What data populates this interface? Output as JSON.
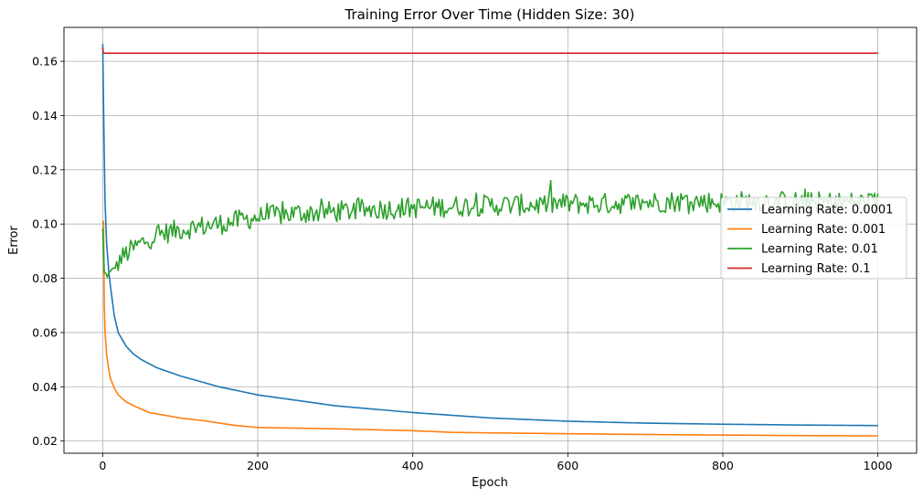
{
  "chart_data": {
    "type": "line",
    "title": "Training Error Over Time (Hidden Size: 30)",
    "xlabel": "Epoch",
    "ylabel": "Error",
    "xlim": [
      -50,
      1050
    ],
    "ylim": [
      0.0155,
      0.1725
    ],
    "xticks": [
      0,
      200,
      400,
      600,
      800,
      1000
    ],
    "yticks": [
      0.02,
      0.04,
      0.06,
      0.08,
      0.1,
      0.12,
      0.14,
      0.16
    ],
    "ytick_labels": [
      "0.02",
      "0.04",
      "0.06",
      "0.08",
      "0.10",
      "0.12",
      "0.14",
      "0.16"
    ],
    "grid": true,
    "legend_placement": "center-right",
    "series": [
      {
        "name": "Learning Rate: 0.0001",
        "color": "#1f77b4",
        "x": [
          0,
          1,
          2,
          3,
          5,
          8,
          10,
          15,
          20,
          30,
          40,
          50,
          70,
          100,
          150,
          200,
          300,
          400,
          500,
          600,
          700,
          800,
          900,
          1000
        ],
        "y": [
          0.1665,
          0.145,
          0.125,
          0.108,
          0.093,
          0.082,
          0.077,
          0.066,
          0.06,
          0.055,
          0.052,
          0.05,
          0.047,
          0.044,
          0.04,
          0.037,
          0.033,
          0.0305,
          0.0285,
          0.0273,
          0.0266,
          0.0262,
          0.0259,
          0.0257
        ]
      },
      {
        "name": "Learning Rate: 0.001",
        "color": "#ff7f0e",
        "x": [
          0,
          1,
          2,
          3,
          5,
          8,
          10,
          15,
          20,
          30,
          40,
          60,
          100,
          130,
          170,
          200,
          300,
          400,
          450,
          500,
          600,
          700,
          800,
          900,
          1000
        ],
        "y": [
          0.1,
          0.101,
          0.07,
          0.06,
          0.052,
          0.046,
          0.043,
          0.0395,
          0.037,
          0.0345,
          0.033,
          0.0305,
          0.0285,
          0.0275,
          0.0258,
          0.025,
          0.0245,
          0.0238,
          0.0232,
          0.023,
          0.0227,
          0.0224,
          0.0222,
          0.022,
          0.0219
        ]
      },
      {
        "name": "Learning Rate: 0.01",
        "color": "#2ca02c",
        "x": [
          0,
          2,
          5,
          10,
          20,
          30,
          50,
          70,
          100,
          150,
          200,
          250,
          300,
          350,
          400,
          450,
          500,
          550,
          600,
          650,
          700,
          750,
          800,
          850,
          900,
          950,
          1000
        ],
        "y": [
          0.098,
          0.082,
          0.081,
          0.082,
          0.086,
          0.089,
          0.093,
          0.096,
          0.098,
          0.1,
          0.1025,
          0.104,
          0.1045,
          0.1055,
          0.106,
          0.1065,
          0.107,
          0.107,
          0.1075,
          0.1075,
          0.108,
          0.1085,
          0.108,
          0.1085,
          0.108,
          0.108,
          0.108
        ],
        "noise_amplitude": 0.004
      },
      {
        "name": "Learning Rate: 0.1",
        "color": "#d62728",
        "x": [
          0,
          1,
          1000
        ],
        "y": [
          0.165,
          0.163,
          0.163
        ]
      }
    ]
  }
}
